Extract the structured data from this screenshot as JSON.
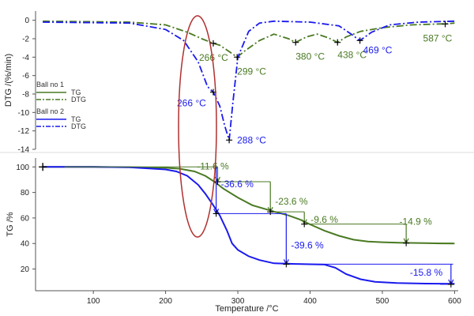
{
  "colors": {
    "ball1": "#4a7a23",
    "ball2": "#1a1aee",
    "ellipse": "#b03030",
    "axis": "#555555"
  },
  "chart_data": [
    {
      "type": "line",
      "ylabel": "DTG /(%/min)",
      "ylim": [
        -14,
        1
      ],
      "yticks": [
        0,
        -2,
        -4,
        -6,
        -8,
        -10,
        -12,
        -14
      ],
      "series": [
        {
          "name": "DTG",
          "group": "Ball no 1",
          "style": "dashdot",
          "x": [
            30,
            150,
            200,
            230,
            250,
            266,
            275,
            290,
            299,
            310,
            330,
            350,
            370,
            380,
            395,
            410,
            425,
            438,
            450,
            470,
            500,
            540,
            580,
            587,
            600
          ],
          "y": [
            -0.1,
            -0.2,
            -0.5,
            -1.3,
            -2.0,
            -2.5,
            -2.7,
            -3.5,
            -4.0,
            -3.3,
            -2.2,
            -1.5,
            -2.0,
            -2.4,
            -1.8,
            -1.5,
            -1.9,
            -2.4,
            -1.8,
            -1.2,
            -0.8,
            -0.5,
            -0.4,
            -0.4,
            -0.3
          ]
        },
        {
          "name": "DTG",
          "group": "Ball no 2",
          "style": "dashdot",
          "x": [
            30,
            150,
            200,
            225,
            245,
            258,
            266,
            275,
            282,
            288,
            293,
            300,
            315,
            330,
            350,
            400,
            440,
            455,
            469,
            485,
            510,
            550,
            600
          ],
          "y": [
            -0.2,
            -0.3,
            -1.0,
            -2.2,
            -4.5,
            -7.2,
            -7.8,
            -9.3,
            -11.5,
            -13.0,
            -9.0,
            -4.0,
            -1.2,
            -0.3,
            -0.1,
            -0.2,
            -0.6,
            -1.4,
            -2.2,
            -1.3,
            -0.5,
            -0.2,
            -0.1
          ]
        }
      ],
      "peaks": [
        {
          "x": 266,
          "y": -2.5,
          "label": "266 °C",
          "group": "Ball no 1"
        },
        {
          "x": 299,
          "y": -4.0,
          "label": "299 °C",
          "group": "Ball no 1"
        },
        {
          "x": 380,
          "y": -2.4,
          "label": "380 °C",
          "group": "Ball no 1"
        },
        {
          "x": 438,
          "y": -2.4,
          "label": "438 °C",
          "group": "Ball no 1"
        },
        {
          "x": 587,
          "y": -0.4,
          "label": "587 °C",
          "group": "Ball no 1"
        },
        {
          "x": 266,
          "y": -7.8,
          "label": "266 °C",
          "group": "Ball no 2"
        },
        {
          "x": 288,
          "y": -13.0,
          "label": "288 °C",
          "group": "Ball no 2"
        },
        {
          "x": 469,
          "y": -2.2,
          "label": "469 °C",
          "group": "Ball no 2"
        }
      ],
      "legend": {
        "groups": [
          {
            "title": "Ball no 1",
            "items": [
              "TG",
              "DTG"
            ]
          },
          {
            "title": "Ball no 2",
            "items": [
              "TG",
              "DTG"
            ]
          }
        ]
      }
    },
    {
      "type": "line",
      "xlabel": "Temperature /°C",
      "ylabel": "TG /%",
      "xlim": [
        20,
        605
      ],
      "ylim": [
        3,
        107
      ],
      "xticks": [
        100,
        200,
        300,
        400,
        500,
        600
      ],
      "yticks": [
        20,
        40,
        60,
        80,
        100
      ],
      "series": [
        {
          "name": "TG",
          "group": "Ball no 1",
          "style": "solid",
          "x": [
            30,
            100,
            150,
            200,
            220,
            240,
            255,
            266,
            280,
            300,
            320,
            350,
            370,
            385,
            400,
            420,
            440,
            460,
            480,
            500,
            530,
            560,
            580,
            600
          ],
          "y": [
            100,
            100,
            99.8,
            99.3,
            98.6,
            96.5,
            93,
            89,
            83,
            76,
            70,
            65,
            62,
            59,
            55,
            50,
            46,
            43,
            41.5,
            41,
            40.5,
            40.3,
            40.1,
            40
          ]
        },
        {
          "name": "TG",
          "group": "Ball no 2",
          "style": "solid",
          "x": [
            30,
            100,
            150,
            200,
            215,
            230,
            245,
            255,
            266,
            275,
            285,
            292,
            300,
            315,
            330,
            350,
            380,
            420,
            435,
            450,
            470,
            490,
            520,
            560,
            600
          ],
          "y": [
            100,
            100,
            99.7,
            98,
            96.5,
            93,
            86,
            79,
            70,
            62,
            50,
            40,
            35,
            30,
            27,
            24.5,
            24,
            23.5,
            21,
            16,
            12,
            10,
            9,
            8.6,
            8.4
          ]
        }
      ],
      "steps": [
        {
          "label": "-11.6 %",
          "group": "Ball no 1",
          "x": 272,
          "y_top": 100,
          "y_bottom": 88.4
        },
        {
          "label": "-23.6 %",
          "group": "Ball no 1",
          "x": 345,
          "y_top": 88.4,
          "y_bottom": 64.8
        },
        {
          "label": "-9.6 %",
          "group": "Ball no 1",
          "x": 392,
          "y_top": 64.8,
          "y_bottom": 55.2
        },
        {
          "label": "-14.9 %",
          "group": "Ball no 1",
          "x": 533,
          "y_top": 55.2,
          "y_bottom": 40.3
        },
        {
          "label": "-36.6 %",
          "group": "Ball no 2",
          "x": 270,
          "y_top": 100,
          "y_bottom": 63.4
        },
        {
          "label": "-39.6 %",
          "group": "Ball no 2",
          "x": 367,
          "y_top": 63.4,
          "y_bottom": 23.8
        },
        {
          "label": "-15.8 %",
          "group": "Ball no 2",
          "x": 595,
          "y_top": 23.8,
          "y_bottom": 8.0
        }
      ]
    }
  ]
}
